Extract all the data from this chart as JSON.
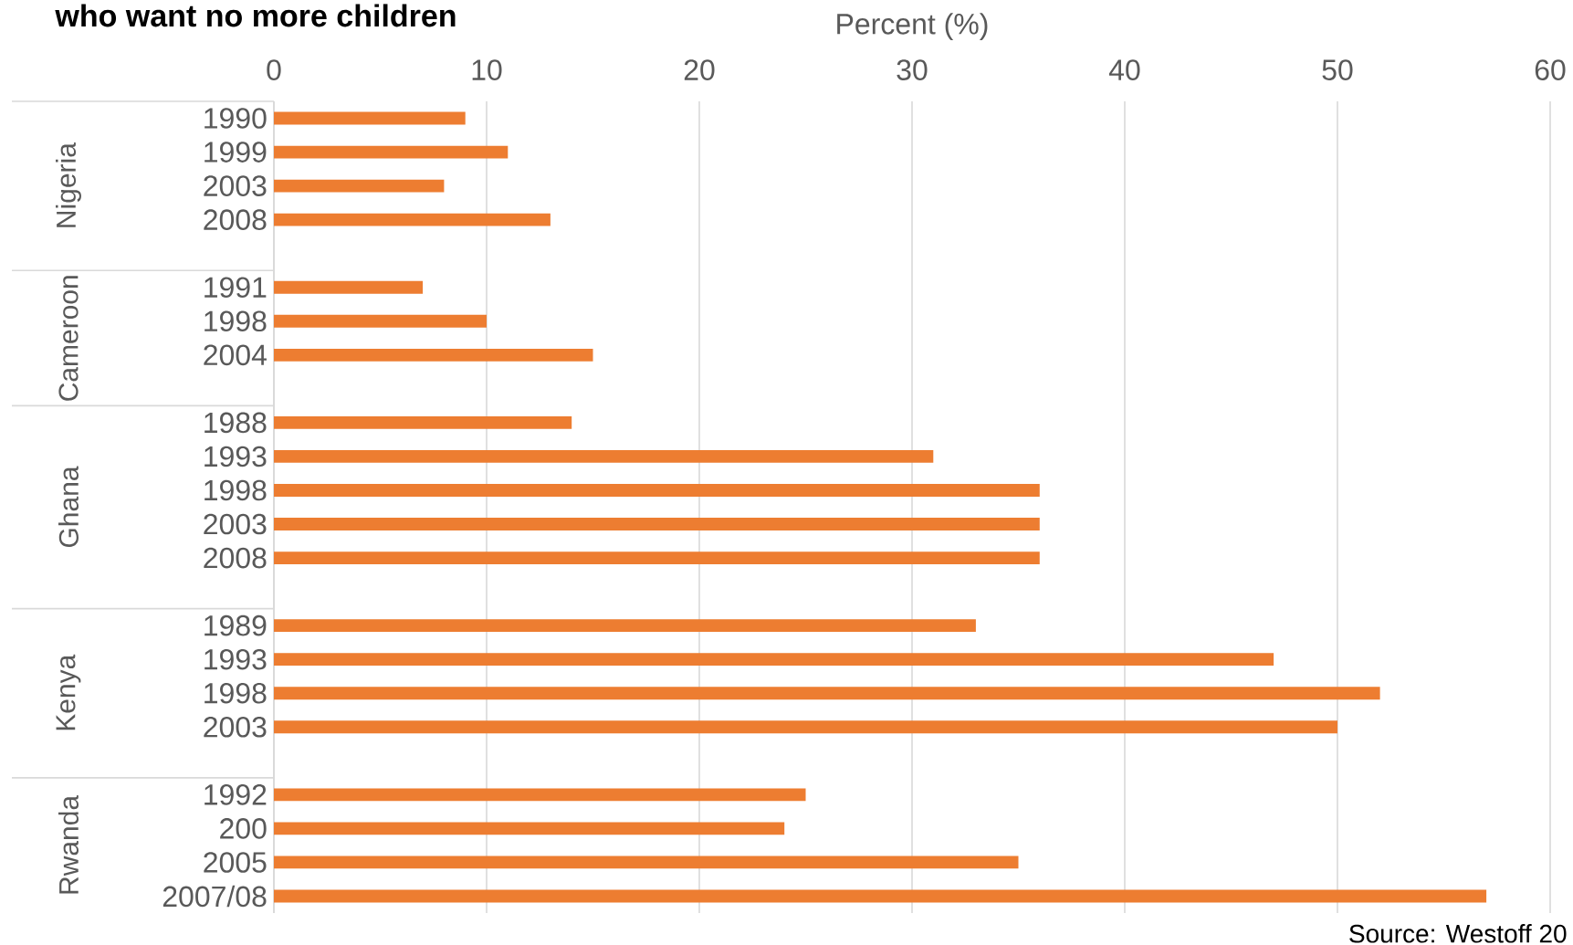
{
  "chart_data": {
    "type": "bar",
    "orientation": "horizontal",
    "title": "who want no more children",
    "xlabel": "Percent (%)",
    "categories": [
      "1990",
      "1999",
      "2003",
      "2008",
      null,
      "1991",
      "1998",
      "2004",
      null,
      "1988",
      "1993",
      "1998",
      "2003",
      "2008",
      null,
      "1989",
      "1993",
      "1998",
      "2003",
      null,
      "1992",
      "200",
      "2005",
      "2007/08"
    ],
    "values": [
      9,
      11,
      8,
      13,
      null,
      7,
      10,
      15,
      null,
      14,
      31,
      36,
      36,
      36,
      null,
      33,
      47,
      52,
      50,
      null,
      25,
      24,
      35,
      57
    ],
    "color": "#ed7d31",
    "xlim": [
      0,
      60
    ],
    "xticks": [
      0,
      10,
      20,
      30,
      40,
      50,
      60
    ],
    "grid": "x",
    "annotations": [
      "Nigeria",
      "Cameroon",
      "Ghana",
      "Kenya",
      "Rwanda",
      "Source: Westoff 20"
    ]
  }
}
